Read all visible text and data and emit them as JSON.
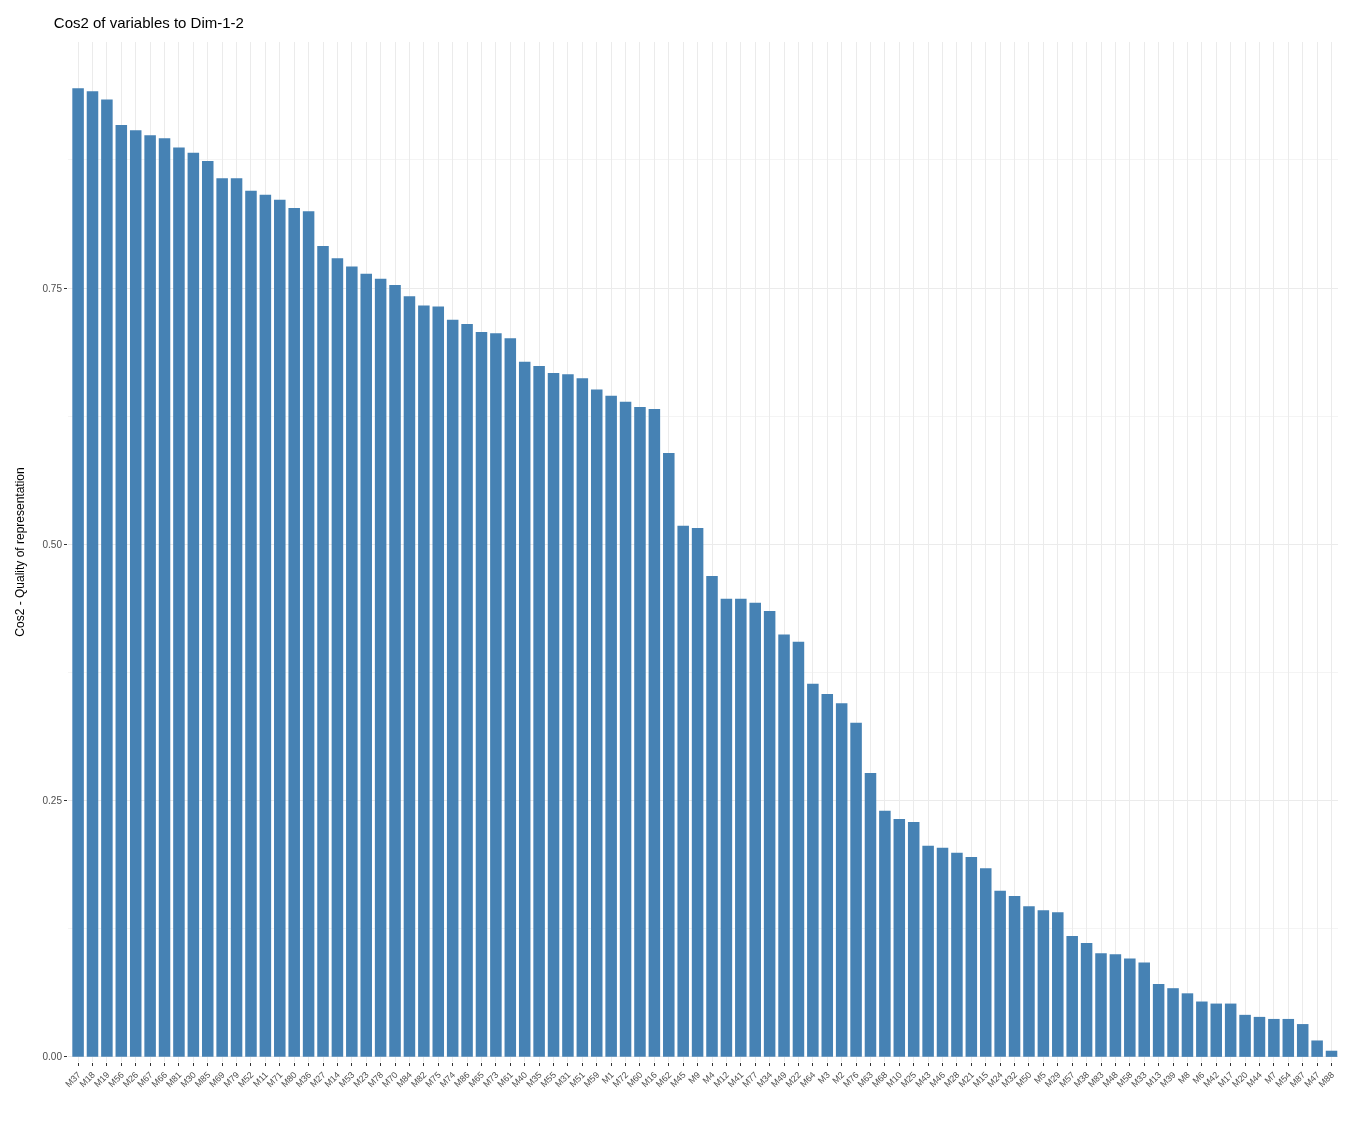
{
  "chart_data": {
    "type": "bar",
    "title": "Cos2 of variables to Dim-1-2",
    "ylabel": "Cos2 - Quality of representation",
    "categories": [
      "M37",
      "M18",
      "M19",
      "M56",
      "M26",
      "M67",
      "M66",
      "M81",
      "M30",
      "M85",
      "M69",
      "M79",
      "M52",
      "M11",
      "M71",
      "M80",
      "M36",
      "M27",
      "M14",
      "M53",
      "M23",
      "M78",
      "M70",
      "M84",
      "M82",
      "M75",
      "M74",
      "M86",
      "M65",
      "M73",
      "M61",
      "M40",
      "M35",
      "M55",
      "M31",
      "M51",
      "M59",
      "M1",
      "M72",
      "M60",
      "M16",
      "M62",
      "M45",
      "M9",
      "M4",
      "M12",
      "M41",
      "M77",
      "M34",
      "M49",
      "M22",
      "M64",
      "M3",
      "M2",
      "M76",
      "M63",
      "M68",
      "M10",
      "M25",
      "M43",
      "M46",
      "M28",
      "M21",
      "M15",
      "M24",
      "M32",
      "M50",
      "M5",
      "M29",
      "M57",
      "M38",
      "M83",
      "M48",
      "M58",
      "M33",
      "M13",
      "M39",
      "M8",
      "M6",
      "M42",
      "M17",
      "M20",
      "M44",
      "M7",
      "M54",
      "M87",
      "M47",
      "M88"
    ],
    "values": [
      0.945,
      0.942,
      0.934,
      0.909,
      0.904,
      0.899,
      0.896,
      0.887,
      0.882,
      0.874,
      0.857,
      0.857,
      0.845,
      0.841,
      0.836,
      0.828,
      0.825,
      0.791,
      0.779,
      0.771,
      0.764,
      0.759,
      0.753,
      0.742,
      0.733,
      0.732,
      0.719,
      0.715,
      0.707,
      0.706,
      0.701,
      0.678,
      0.674,
      0.667,
      0.666,
      0.662,
      0.651,
      0.645,
      0.639,
      0.634,
      0.632,
      0.589,
      0.518,
      0.516,
      0.469,
      0.447,
      0.447,
      0.443,
      0.435,
      0.412,
      0.405,
      0.364,
      0.354,
      0.345,
      0.326,
      0.277,
      0.24,
      0.232,
      0.229,
      0.206,
      0.204,
      0.199,
      0.195,
      0.184,
      0.162,
      0.157,
      0.147,
      0.143,
      0.141,
      0.118,
      0.111,
      0.101,
      0.1,
      0.096,
      0.092,
      0.071,
      0.067,
      0.062,
      0.054,
      0.052,
      0.052,
      0.041,
      0.039,
      0.037,
      0.037,
      0.032,
      0.016,
      0.006
    ],
    "color": "#4682b4",
    "ylim": [
      -0.005,
      0.99
    ],
    "yticks": [
      {
        "value": 0,
        "label": "0.00"
      },
      {
        "value": 0.25,
        "label": "0.25"
      },
      {
        "value": 0.5,
        "label": "0.50"
      },
      {
        "value": 0.75,
        "label": "0.75"
      }
    ],
    "grid": true
  }
}
